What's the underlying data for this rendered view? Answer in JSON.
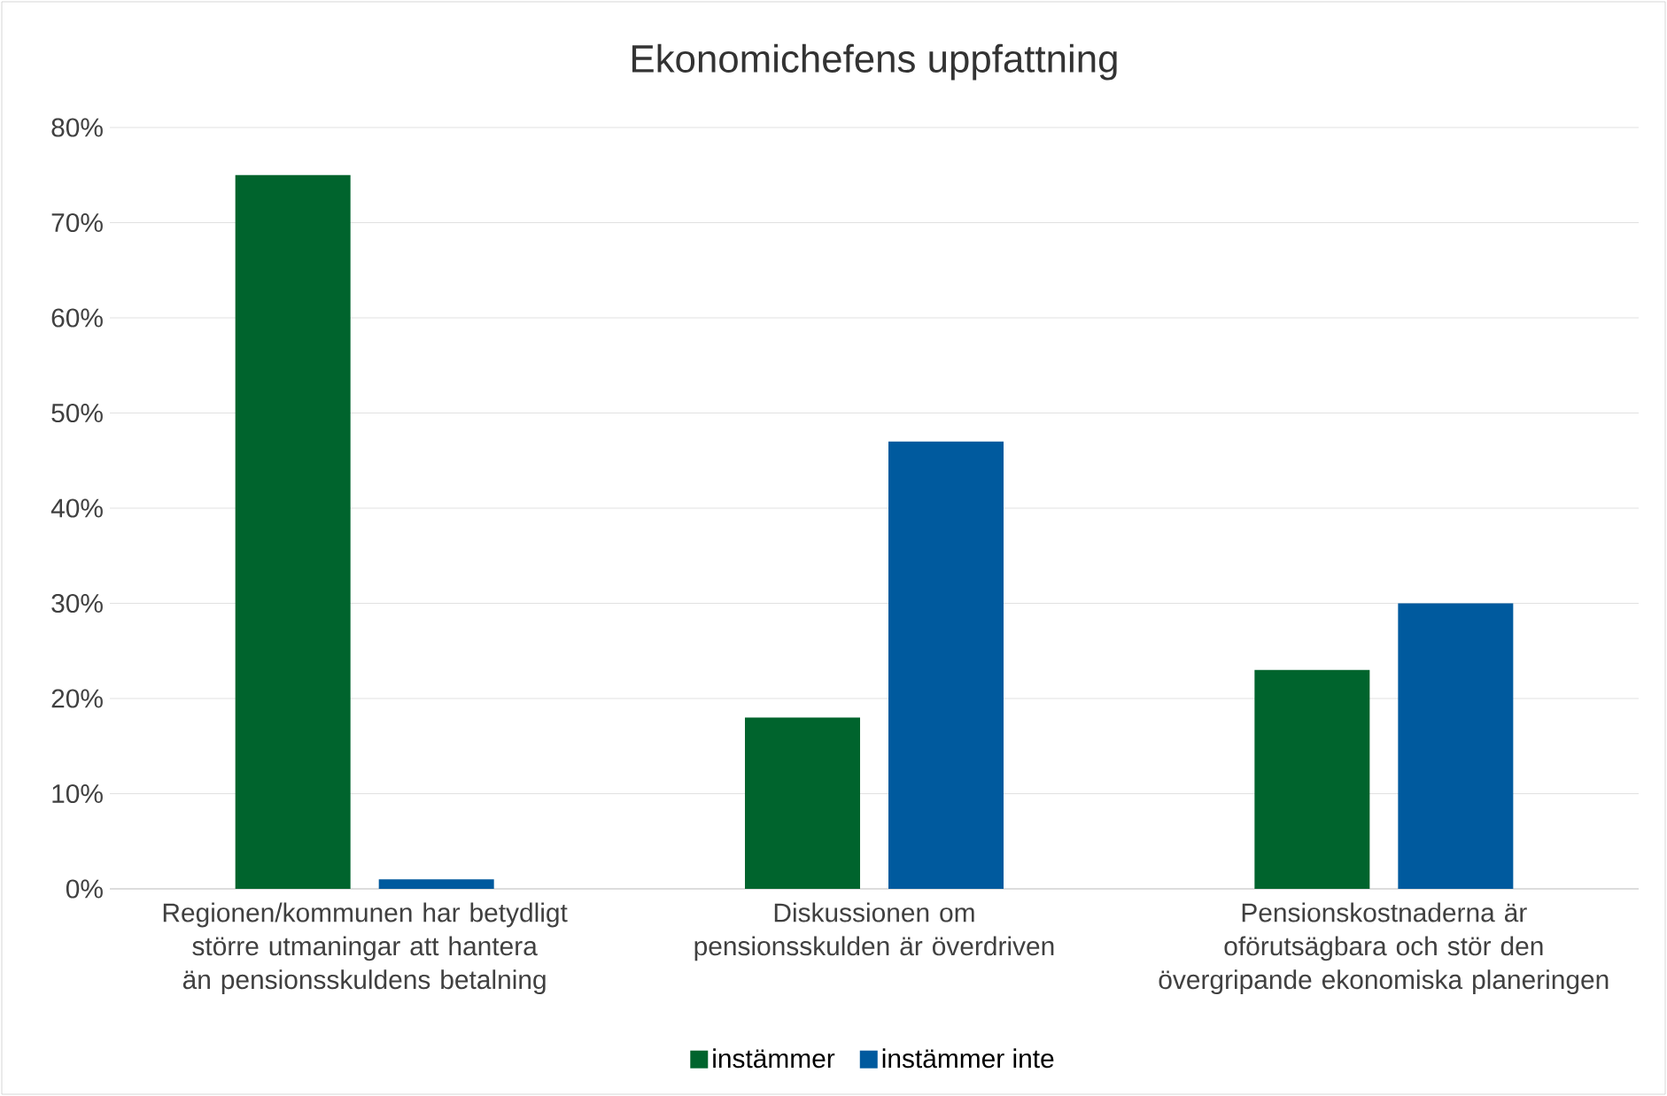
{
  "chart_data": {
    "type": "bar",
    "title": "Ekonomichefens uppfattning",
    "categories": [
      "Regionen/kommunen har betydligt större utmaningar att hantera än pensionsskuldens betalning",
      "Diskussionen om pensionsskulden är överdriven",
      "Pensionskostnaderna är oförutsägbara och stör den övergripande ekonomiska planeringen"
    ],
    "series": [
      {
        "name": "instämmer",
        "color": "#00642d",
        "values": [
          75,
          18,
          23
        ]
      },
      {
        "name": "instämmer inte",
        "color": "#005a9e",
        "values": [
          1,
          47,
          30
        ]
      }
    ],
    "ylim": [
      0,
      80
    ],
    "yticks": [
      {
        "value": 0,
        "label": "0%"
      },
      {
        "value": 10,
        "label": "10%"
      },
      {
        "value": 20,
        "label": "20%"
      },
      {
        "value": 30,
        "label": "30%"
      },
      {
        "value": 40,
        "label": "40%"
      },
      {
        "value": 50,
        "label": "50%"
      },
      {
        "value": 60,
        "label": "60%"
      },
      {
        "value": 70,
        "label": "70%"
      },
      {
        "value": 80,
        "label": "80%"
      }
    ],
    "grid": "y",
    "legend": "bottom"
  }
}
